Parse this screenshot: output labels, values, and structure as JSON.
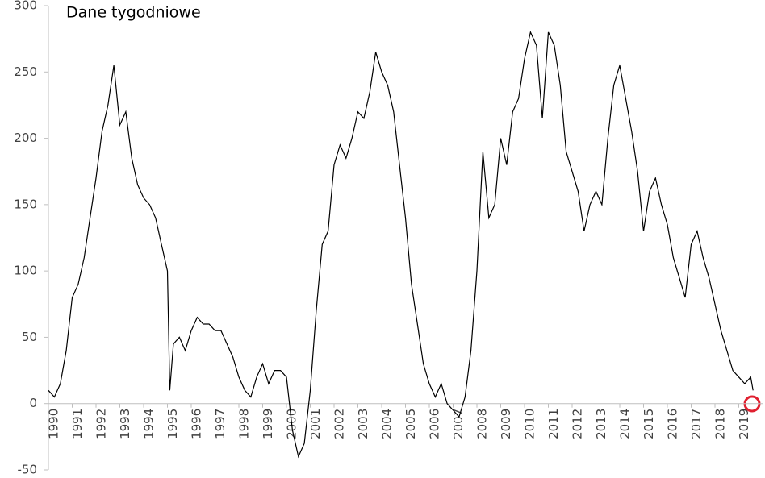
{
  "chart_data": {
    "type": "line",
    "annotation": "Dane tygodniowe",
    "x": [
      1990.0,
      1990.25,
      1990.5,
      1990.75,
      1991.0,
      1991.25,
      1991.5,
      1991.75,
      1992.0,
      1992.25,
      1992.5,
      1992.75,
      1993.0,
      1993.25,
      1993.5,
      1993.75,
      1994.0,
      1994.25,
      1994.5,
      1994.75,
      1995.0,
      1995.1,
      1995.25,
      1995.5,
      1995.75,
      1996.0,
      1996.25,
      1996.5,
      1996.75,
      1997.0,
      1997.25,
      1997.5,
      1997.75,
      1998.0,
      1998.25,
      1998.5,
      1998.75,
      1999.0,
      1999.25,
      1999.5,
      1999.75,
      2000.0,
      2000.25,
      2000.5,
      2000.75,
      2001.0,
      2001.25,
      2001.5,
      2001.75,
      2002.0,
      2002.25,
      2002.5,
      2002.75,
      2003.0,
      2003.25,
      2003.5,
      2003.75,
      2004.0,
      2004.25,
      2004.5,
      2004.75,
      2005.0,
      2005.25,
      2005.5,
      2005.75,
      2006.0,
      2006.25,
      2006.5,
      2006.75,
      2007.0,
      2007.25,
      2007.5,
      2007.75,
      2008.0,
      2008.25,
      2008.5,
      2008.75,
      2009.0,
      2009.25,
      2009.5,
      2009.75,
      2010.0,
      2010.25,
      2010.5,
      2010.75,
      2011.0,
      2011.25,
      2011.5,
      2011.75,
      2012.0,
      2012.25,
      2012.5,
      2012.75,
      2013.0,
      2013.25,
      2013.5,
      2013.75,
      2014.0,
      2014.25,
      2014.5,
      2014.75,
      2015.0,
      2015.25,
      2015.5,
      2015.75,
      2016.0,
      2016.25,
      2016.5,
      2016.75,
      2017.0,
      2017.25,
      2017.5,
      2017.75,
      2018.0,
      2018.25,
      2018.5,
      2018.75,
      2019.0,
      2019.25,
      2019.5,
      2019.6
    ],
    "series": [
      {
        "color": "#000000",
        "values": [
          10,
          5,
          15,
          40,
          80,
          90,
          110,
          140,
          170,
          205,
          225,
          255,
          210,
          220,
          185,
          165,
          155,
          150,
          140,
          120,
          100,
          10,
          45,
          50,
          40,
          55,
          65,
          60,
          60,
          55,
          55,
          45,
          35,
          20,
          10,
          5,
          20,
          30,
          15,
          25,
          25,
          20,
          -20,
          -40,
          -30,
          10,
          70,
          120,
          130,
          180,
          195,
          185,
          200,
          220,
          215,
          235,
          265,
          250,
          240,
          220,
          180,
          140,
          90,
          60,
          30,
          15,
          5,
          15,
          0,
          -5,
          -10,
          5,
          40,
          100,
          190,
          140,
          150,
          200,
          180,
          220,
          230,
          260,
          280,
          270,
          215,
          280,
          270,
          240,
          190,
          175,
          160,
          130,
          150,
          160,
          150,
          200,
          240,
          255,
          230,
          205,
          175,
          130,
          160,
          170,
          150,
          135,
          110,
          95,
          80,
          120,
          130,
          110,
          95,
          75,
          55,
          40,
          25,
          20,
          15,
          20,
          10
        ]
      }
    ],
    "xlim": [
      1990,
      2020
    ],
    "xticks": [
      1990,
      1991,
      1992,
      1993,
      1994,
      1995,
      1996,
      1997,
      1998,
      1999,
      2000,
      2001,
      2002,
      2003,
      2004,
      2005,
      2006,
      2007,
      2008,
      2009,
      2010,
      2011,
      2012,
      2013,
      2014,
      2015,
      2016,
      2017,
      2018,
      2019
    ],
    "ylim": [
      -50,
      300
    ],
    "yticks": [
      -50,
      0,
      50,
      100,
      150,
      200,
      250,
      300
    ]
  }
}
